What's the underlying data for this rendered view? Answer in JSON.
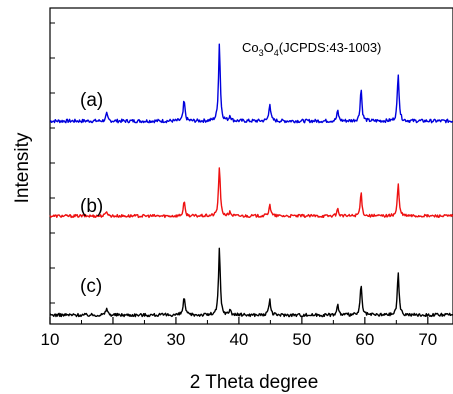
{
  "chart_data": {
    "type": "line",
    "xlabel": "2 Theta degree",
    "ylabel": "Intensity",
    "xlim": [
      10,
      74
    ],
    "xticks": [
      "10",
      "20",
      "30",
      "40",
      "50",
      "60",
      "70"
    ],
    "y_ticks_labeled": false,
    "annotation": {
      "formula": "Co",
      "sub1": "3",
      "mid": "O",
      "sub2": "4",
      "ref": "(JCPDS:43-1003)"
    },
    "series": [
      {
        "name": "(a)",
        "color": "#0000dd",
        "peaks": [
          {
            "x": 19.0,
            "h": 0.09
          },
          {
            "x": 31.3,
            "h": 0.26
          },
          {
            "x": 36.9,
            "h": 1.0
          },
          {
            "x": 38.6,
            "h": 0.07
          },
          {
            "x": 44.9,
            "h": 0.23
          },
          {
            "x": 55.7,
            "h": 0.13
          },
          {
            "x": 59.4,
            "h": 0.42
          },
          {
            "x": 65.3,
            "h": 0.62
          }
        ]
      },
      {
        "name": "(b)",
        "color": "#ee1111",
        "peaks": [
          {
            "x": 19.0,
            "h": 0.08
          },
          {
            "x": 31.3,
            "h": 0.22
          },
          {
            "x": 36.9,
            "h": 0.78
          },
          {
            "x": 38.6,
            "h": 0.06
          },
          {
            "x": 44.9,
            "h": 0.19
          },
          {
            "x": 55.7,
            "h": 0.11
          },
          {
            "x": 59.4,
            "h": 0.36
          },
          {
            "x": 65.3,
            "h": 0.5
          }
        ]
      },
      {
        "name": "(c)",
        "color": "#000000",
        "peaks": [
          {
            "x": 19.0,
            "h": 0.1
          },
          {
            "x": 31.3,
            "h": 0.26
          },
          {
            "x": 36.9,
            "h": 0.93
          },
          {
            "x": 38.6,
            "h": 0.08
          },
          {
            "x": 44.9,
            "h": 0.22
          },
          {
            "x": 55.7,
            "h": 0.14
          },
          {
            "x": 59.4,
            "h": 0.42
          },
          {
            "x": 65.3,
            "h": 0.6
          }
        ]
      }
    ]
  }
}
